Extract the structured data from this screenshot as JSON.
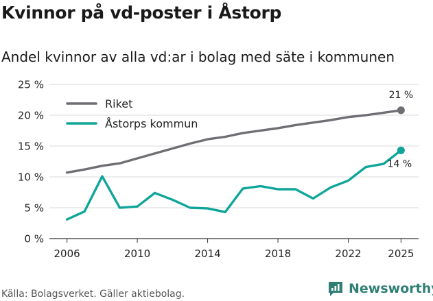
{
  "header": {
    "title": "Kvinnor på vd-poster i Åstorp",
    "subtitle": "Andel kvinnor av alla vd:ar i bolag med säte i kommunen"
  },
  "footer": {
    "source": "Källa: Bolagsverket. Gäller aktiebolag.",
    "brand": "Newsworthy"
  },
  "colors": {
    "riket": "#6e6e73",
    "astorp": "#10a59a",
    "grid": "#d9d9d9",
    "brand": "#2f7f74"
  },
  "chart_data": {
    "type": "line",
    "title": "Kvinnor på vd-poster i Åstorp",
    "subtitle": "Andel kvinnor av alla vd:ar i bolag med säte i kommunen",
    "xlabel": "",
    "ylabel": "",
    "x": [
      2006,
      2007,
      2008,
      2009,
      2010,
      2011,
      2012,
      2013,
      2014,
      2015,
      2016,
      2017,
      2018,
      2019,
      2020,
      2021,
      2022,
      2023,
      2024,
      2025
    ],
    "xlim": [
      2005,
      2026
    ],
    "ylim": [
      0,
      25
    ],
    "x_ticks": [
      2006,
      2010,
      2014,
      2018,
      2022,
      2025
    ],
    "x_tick_labels": [
      "2006",
      "2010",
      "2014",
      "2018",
      "2022",
      "2025"
    ],
    "y_ticks": [
      0,
      5,
      10,
      15,
      20,
      25
    ],
    "y_tick_labels": [
      "0 %",
      "5 %",
      "10 %",
      "15 %",
      "20 %",
      "25 %"
    ],
    "grid": true,
    "legend_position": "top-left",
    "series": [
      {
        "name": "Riket",
        "color_key": "riket",
        "values": [
          10.7,
          11.2,
          11.8,
          12.2,
          13.0,
          13.8,
          14.6,
          15.4,
          16.1,
          16.5,
          17.1,
          17.5,
          17.9,
          18.4,
          18.8,
          19.2,
          19.7,
          20.0,
          20.4,
          20.8
        ],
        "end_label": "21 %"
      },
      {
        "name": "Åstorps kommun",
        "color_key": "astorp",
        "values": [
          3.1,
          4.4,
          10.1,
          5.0,
          5.2,
          7.4,
          6.3,
          5.0,
          4.9,
          4.3,
          8.1,
          8.5,
          8.0,
          8.0,
          6.5,
          8.3,
          9.4,
          11.6,
          12.1,
          14.3
        ],
        "end_label": "14 %"
      }
    ]
  }
}
